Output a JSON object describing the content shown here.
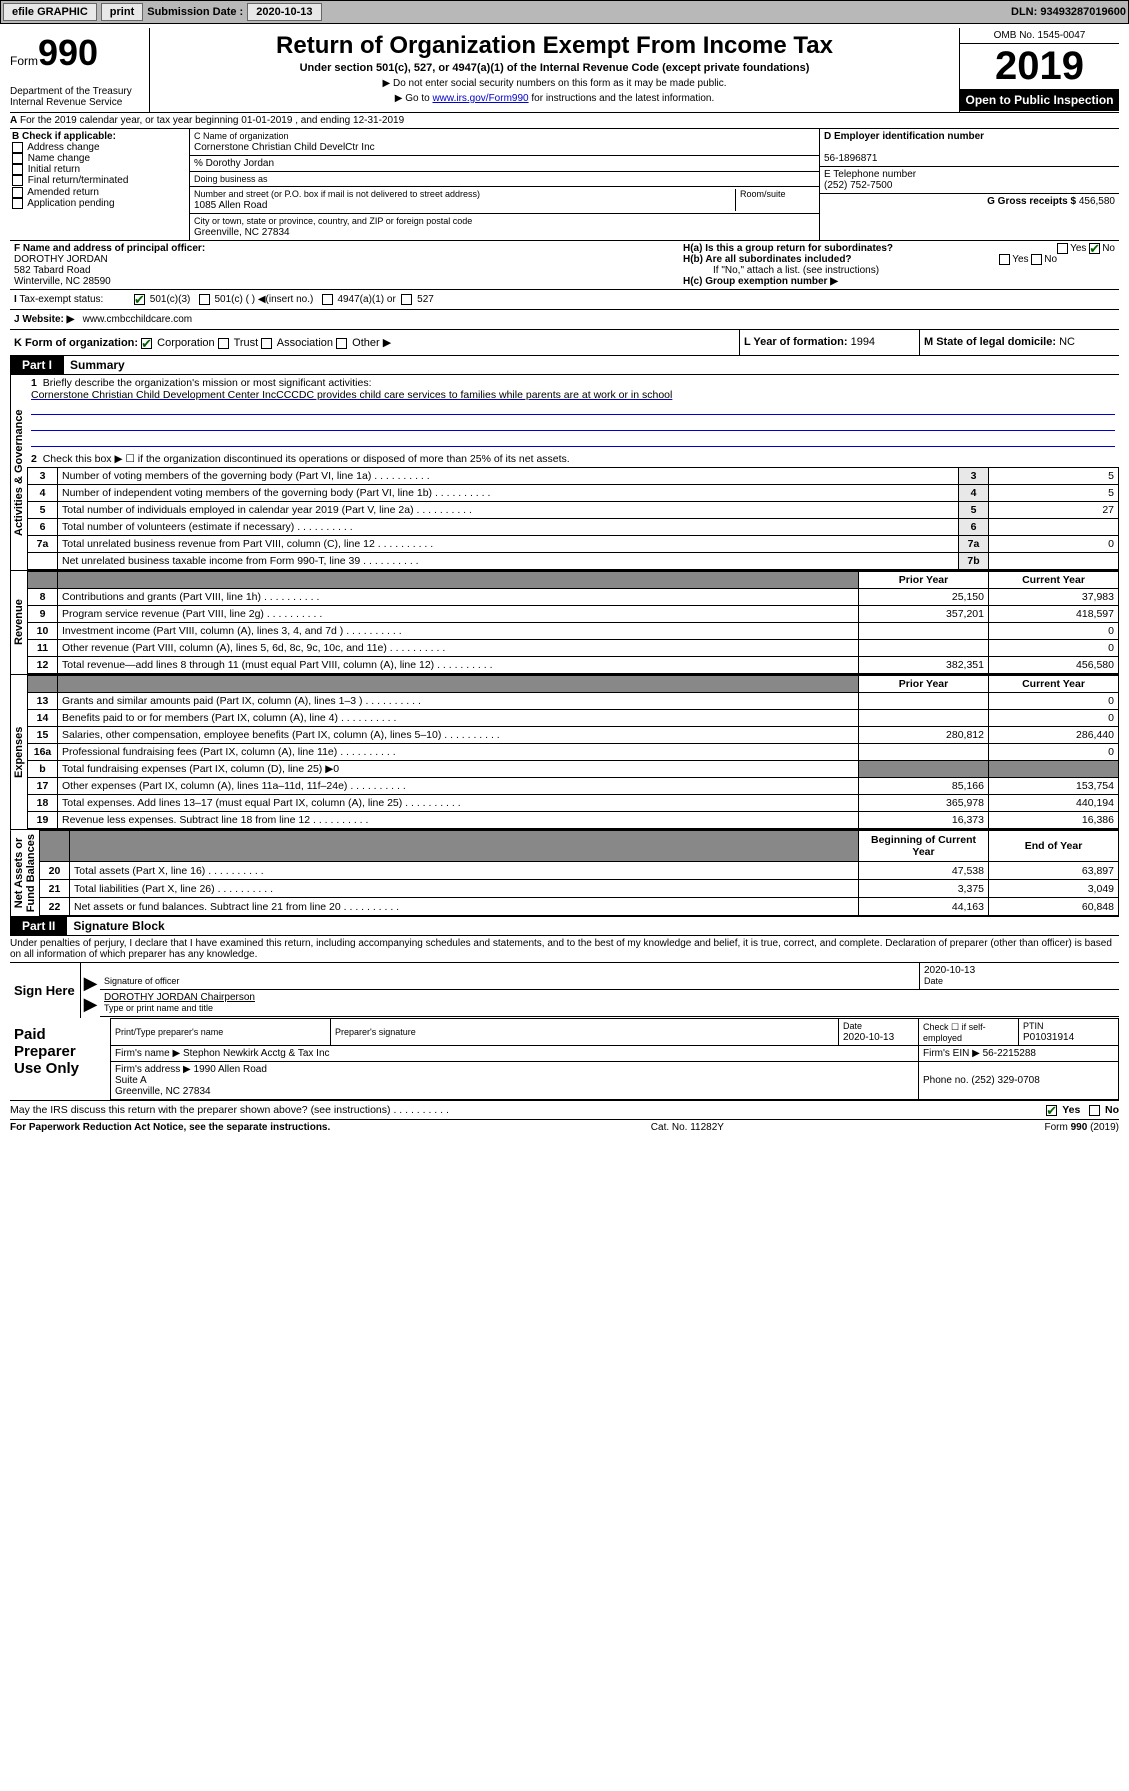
{
  "topbar": {
    "efile": "efile GRAPHIC",
    "print": "print",
    "sub_label": "Submission Date :",
    "sub_date": "2020-10-13",
    "dln_label": "DLN:",
    "dln": "93493287019600"
  },
  "header": {
    "form": "Form",
    "num": "990",
    "dept": "Department of the Treasury\nInternal Revenue Service",
    "title": "Return of Organization Exempt From Income Tax",
    "sub": "Under section 501(c), 527, or 4947(a)(1) of the Internal Revenue Code (except private foundations)",
    "note1": "▶ Do not enter social security numbers on this form as it may be made public.",
    "note2a": "▶ Go to ",
    "note2_link": "www.irs.gov/Form990",
    "note2b": " for instructions and the latest information.",
    "omb": "OMB No. 1545-0047",
    "year": "2019",
    "open": "Open to Public Inspection"
  },
  "line_a": "For the 2019 calendar year, or tax year beginning 01-01-2019    , and ending 12-31-2019",
  "box_b": {
    "label": "B Check if applicable:",
    "items": [
      "Address change",
      "Name change",
      "Initial return",
      "Final return/terminated",
      "Amended return",
      "Application pending"
    ]
  },
  "box_c": {
    "name_lbl": "C Name of organization",
    "name": "Cornerstone Christian Child DevelCtr Inc",
    "care_lbl": "% Dorothy Jordan",
    "dba_lbl": "Doing business as",
    "addr_lbl": "Number and street (or P.O. box if mail is not delivered to street address)",
    "room_lbl": "Room/suite",
    "addr": "1085 Allen Road",
    "city_lbl": "City or town, state or province, country, and ZIP or foreign postal code",
    "city": "Greenville, NC  27834"
  },
  "box_d": {
    "lbl": "D Employer identification number",
    "val": "56-1896871"
  },
  "box_e": {
    "lbl": "E Telephone number",
    "val": "(252) 752-7500"
  },
  "box_g": {
    "lbl": "G Gross receipts $",
    "val": "456,580"
  },
  "box_f": {
    "lbl": "F  Name and address of principal officer:",
    "name": "DOROTHY JORDAN",
    "addr1": "582 Tabard Road",
    "addr2": "Winterville, NC  28590"
  },
  "tax_status": {
    "lbl": "Tax-exempt status:",
    "c3": "501(c)(3)",
    "c": "501(c) (  ) ◀(insert no.)",
    "a1": "4947(a)(1) or",
    "s527": "527"
  },
  "box_h": {
    "a": "H(a)  Is this a group return for subordinates?",
    "b": "H(b)  Are all subordinates included?",
    "note": "If \"No,\" attach a list. (see instructions)",
    "c": "H(c)  Group exemption number ▶",
    "yes": "Yes",
    "no": "No"
  },
  "box_j": {
    "lbl": "Website: ▶",
    "val": "www.cmbcchildcare.com"
  },
  "box_k": {
    "lbl": "K Form of organization:",
    "corp": "Corporation",
    "trust": "Trust",
    "assoc": "Association",
    "other": "Other ▶"
  },
  "box_l": {
    "lbl": "L Year of formation:",
    "val": "1994"
  },
  "box_m": {
    "lbl": "M State of legal domicile:",
    "val": "NC"
  },
  "part1": {
    "hdr": "Part I",
    "title": "Summary",
    "q1": "Briefly describe the organization's mission or most significant activities:",
    "q1_ans": "Cornerstone Christian Child Development Center IncCCCDC provides child care services to families while parents are at work or in school",
    "q2": "Check this box ▶ ☐  if the organization discontinued its operations or disposed of more than 25% of its net assets.",
    "rows_ag": [
      {
        "n": "3",
        "t": "Number of voting members of the governing body (Part VI, line 1a)",
        "l": "3",
        "v": "5"
      },
      {
        "n": "4",
        "t": "Number of independent voting members of the governing body (Part VI, line 1b)",
        "l": "4",
        "v": "5"
      },
      {
        "n": "5",
        "t": "Total number of individuals employed in calendar year 2019 (Part V, line 2a)",
        "l": "5",
        "v": "27"
      },
      {
        "n": "6",
        "t": "Total number of volunteers (estimate if necessary)",
        "l": "6",
        "v": ""
      },
      {
        "n": "7a",
        "t": "Total unrelated business revenue from Part VIII, column (C), line 12",
        "l": "7a",
        "v": "0"
      },
      {
        "n": "",
        "t": "Net unrelated business taxable income from Form 990-T, line 39",
        "l": "7b",
        "v": ""
      }
    ],
    "col_py": "Prior Year",
    "col_cy": "Current Year",
    "rows_rev": [
      {
        "n": "8",
        "t": "Contributions and grants (Part VIII, line 1h)",
        "py": "25,150",
        "cy": "37,983"
      },
      {
        "n": "9",
        "t": "Program service revenue (Part VIII, line 2g)",
        "py": "357,201",
        "cy": "418,597"
      },
      {
        "n": "10",
        "t": "Investment income (Part VIII, column (A), lines 3, 4, and 7d )",
        "py": "",
        "cy": "0"
      },
      {
        "n": "11",
        "t": "Other revenue (Part VIII, column (A), lines 5, 6d, 8c, 9c, 10c, and 11e)",
        "py": "",
        "cy": "0"
      },
      {
        "n": "12",
        "t": "Total revenue—add lines 8 through 11 (must equal Part VIII, column (A), line 12)",
        "py": "382,351",
        "cy": "456,580"
      }
    ],
    "rows_exp": [
      {
        "n": "13",
        "t": "Grants and similar amounts paid (Part IX, column (A), lines 1–3 )",
        "py": "",
        "cy": "0"
      },
      {
        "n": "14",
        "t": "Benefits paid to or for members (Part IX, column (A), line 4)",
        "py": "",
        "cy": "0"
      },
      {
        "n": "15",
        "t": "Salaries, other compensation, employee benefits (Part IX, column (A), lines 5–10)",
        "py": "280,812",
        "cy": "286,440"
      },
      {
        "n": "16a",
        "t": "Professional fundraising fees (Part IX, column (A), line 11e)",
        "py": "",
        "cy": "0"
      },
      {
        "n": "b",
        "t": "Total fundraising expenses (Part IX, column (D), line 25) ▶0",
        "py": "—",
        "cy": "—"
      },
      {
        "n": "17",
        "t": "Other expenses (Part IX, column (A), lines 11a–11d, 11f–24e)",
        "py": "85,166",
        "cy": "153,754"
      },
      {
        "n": "18",
        "t": "Total expenses. Add lines 13–17 (must equal Part IX, column (A), line 25)",
        "py": "365,978",
        "cy": "440,194"
      },
      {
        "n": "19",
        "t": "Revenue less expenses. Subtract line 18 from line 12",
        "py": "16,373",
        "cy": "16,386"
      }
    ],
    "col_bcy": "Beginning of Current Year",
    "col_eoy": "End of Year",
    "rows_na": [
      {
        "n": "20",
        "t": "Total assets (Part X, line 16)",
        "py": "47,538",
        "cy": "63,897"
      },
      {
        "n": "21",
        "t": "Total liabilities (Part X, line 26)",
        "py": "3,375",
        "cy": "3,049"
      },
      {
        "n": "22",
        "t": "Net assets or fund balances. Subtract line 21 from line 20",
        "py": "44,163",
        "cy": "60,848"
      }
    ],
    "vlabels": {
      "ag": "Activities & Governance",
      "rev": "Revenue",
      "exp": "Expenses",
      "na": "Net Assets or\nFund Balances"
    }
  },
  "part2": {
    "hdr": "Part II",
    "title": "Signature Block",
    "decl": "Under penalties of perjury, I declare that I have examined this return, including accompanying schedules and statements, and to the best of my knowledge and belief, it is true, correct, and complete. Declaration of preparer (other than officer) is based on all information of which preparer has any knowledge.",
    "sign_here": "Sign Here",
    "sig_officer": "Signature of officer",
    "sig_date": "Date",
    "sig_date_val": "2020-10-13",
    "officer_name": "DOROTHY JORDAN  Chairperson",
    "type_name": "Type or print name and title",
    "paid": "Paid Preparer Use Only",
    "prep_name_lbl": "Print/Type preparer's name",
    "prep_sig_lbl": "Preparer's signature",
    "prep_date_lbl": "Date",
    "prep_date": "2020-10-13",
    "self_emp": "Check ☐ if self-employed",
    "ptin_lbl": "PTIN",
    "ptin": "P01031914",
    "firm_name_lbl": "Firm's name    ▶",
    "firm_name": "Stephon Newkirk Acctg & Tax Inc",
    "firm_ein_lbl": "Firm's EIN ▶",
    "firm_ein": "56-2215288",
    "firm_addr_lbl": "Firm's address ▶",
    "firm_addr": "1990 Allen Road\nSuite A\nGreenville, NC  27834",
    "phone_lbl": "Phone no.",
    "phone": "(252) 329-0708",
    "discuss": "May the IRS discuss this return with the preparer shown above? (see instructions)",
    "yes": "Yes",
    "no": "No"
  },
  "footer": {
    "pra": "For Paperwork Reduction Act Notice, see the separate instructions.",
    "cat": "Cat. No. 11282Y",
    "form": "Form 990 (2019)"
  }
}
